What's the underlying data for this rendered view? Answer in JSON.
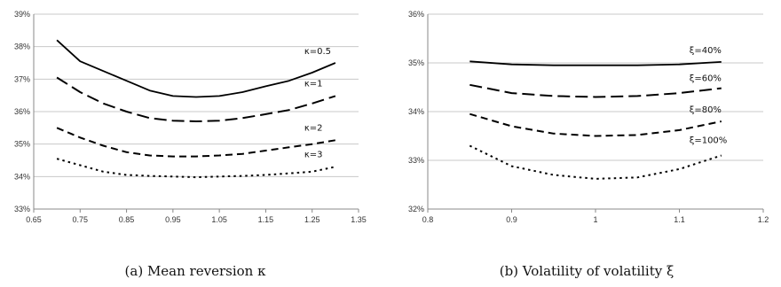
{
  "chart_data": [
    {
      "type": "line",
      "caption": "(a) Mean reversion κ",
      "xlim": [
        0.65,
        1.35
      ],
      "ylim": [
        33,
        39
      ],
      "x_ticks": [
        "0.65",
        "0.75",
        "0.85",
        "0.95",
        "1.05",
        "1.15",
        "1.25",
        "1.35"
      ],
      "y_ticks": [
        "33%",
        "34%",
        "35%",
        "36%",
        "37%",
        "38%",
        "39%"
      ],
      "grid": "horizontal",
      "series": [
        {
          "name": "κ=0.5",
          "dash": "solid",
          "x": [
            0.7,
            0.75,
            0.8,
            0.85,
            0.9,
            0.95,
            1.0,
            1.05,
            1.1,
            1.15,
            1.2,
            1.25,
            1.3
          ],
          "y": [
            38.2,
            37.55,
            37.25,
            36.95,
            36.65,
            36.48,
            36.45,
            36.48,
            36.6,
            36.78,
            36.95,
            37.2,
            37.5
          ]
        },
        {
          "name": "κ=1",
          "dash": "long",
          "x": [
            0.7,
            0.75,
            0.8,
            0.85,
            0.9,
            0.95,
            1.0,
            1.05,
            1.1,
            1.15,
            1.2,
            1.25,
            1.3
          ],
          "y": [
            37.05,
            36.6,
            36.25,
            36.0,
            35.8,
            35.72,
            35.7,
            35.72,
            35.8,
            35.92,
            36.05,
            36.25,
            36.48
          ]
        },
        {
          "name": "κ=2",
          "dash": "medium",
          "x": [
            0.7,
            0.75,
            0.8,
            0.85,
            0.9,
            0.95,
            1.0,
            1.05,
            1.1,
            1.15,
            1.2,
            1.25,
            1.3
          ],
          "y": [
            35.5,
            35.2,
            34.95,
            34.75,
            34.65,
            34.62,
            34.62,
            34.65,
            34.7,
            34.8,
            34.9,
            35.0,
            35.12
          ]
        },
        {
          "name": "κ=3",
          "dash": "dotted",
          "x": [
            0.7,
            0.75,
            0.8,
            0.85,
            0.9,
            0.95,
            1.0,
            1.05,
            1.1,
            1.15,
            1.2,
            1.25,
            1.3
          ],
          "y": [
            34.55,
            34.35,
            34.15,
            34.05,
            34.02,
            34.0,
            33.98,
            34.0,
            34.02,
            34.05,
            34.1,
            34.15,
            34.3
          ]
        }
      ]
    },
    {
      "type": "line",
      "caption": "(b) Volatility of volatility ξ",
      "xlim": [
        0.8,
        1.2
      ],
      "ylim": [
        32,
        36
      ],
      "x_ticks": [
        "0.8",
        "0.9",
        "1",
        "1.1",
        "1.2"
      ],
      "y_ticks": [
        "32%",
        "33%",
        "34%",
        "35%",
        "36%"
      ],
      "grid": "horizontal",
      "series": [
        {
          "name": "ξ=40%",
          "dash": "solid",
          "x": [
            0.85,
            0.9,
            0.95,
            1.0,
            1.05,
            1.1,
            1.15
          ],
          "y": [
            35.03,
            34.97,
            34.95,
            34.95,
            34.95,
            34.97,
            35.02
          ]
        },
        {
          "name": "ξ=60%",
          "dash": "long",
          "x": [
            0.85,
            0.9,
            0.95,
            1.0,
            1.05,
            1.1,
            1.15
          ],
          "y": [
            34.55,
            34.38,
            34.32,
            34.3,
            34.32,
            34.38,
            34.48
          ]
        },
        {
          "name": "ξ=80%",
          "dash": "medium",
          "x": [
            0.85,
            0.9,
            0.95,
            1.0,
            1.05,
            1.1,
            1.15
          ],
          "y": [
            33.95,
            33.7,
            33.55,
            33.5,
            33.52,
            33.62,
            33.8
          ]
        },
        {
          "name": "ξ=100%",
          "dash": "dotted",
          "x": [
            0.85,
            0.9,
            0.95,
            1.0,
            1.05,
            1.1,
            1.15
          ],
          "y": [
            33.3,
            32.88,
            32.7,
            32.62,
            32.65,
            32.82,
            33.1
          ]
        }
      ]
    }
  ]
}
